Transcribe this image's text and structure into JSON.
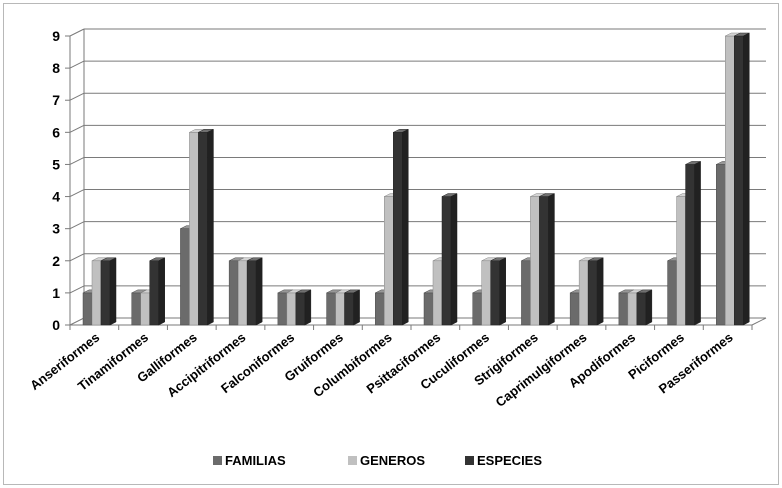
{
  "chart_data": {
    "type": "bar",
    "style": "3d-clustered-column",
    "categories": [
      "Anseriformes",
      "Tinamiformes",
      "Galliformes",
      "Accipitriformes",
      "Falconiformes",
      "Gruiformes",
      "Columbiformes",
      "Psittaciformes",
      "Cuculiformes",
      "Strigiformes",
      "Caprimulgiformes",
      "Apodiformes",
      "Piciformes",
      "Passeriformes"
    ],
    "series": [
      {
        "name": "FAMILIAS",
        "color": "#6b6b6b",
        "values": [
          1,
          1,
          3,
          2,
          1,
          1,
          1,
          1,
          1,
          2,
          1,
          1,
          2,
          5
        ]
      },
      {
        "name": "GENEROS",
        "color": "#c0c0c0",
        "values": [
          2,
          1,
          6,
          2,
          1,
          1,
          4,
          2,
          2,
          4,
          2,
          1,
          4,
          9
        ]
      },
      {
        "name": "ESPECIES",
        "color": "#333333",
        "values": [
          2,
          2,
          6,
          2,
          1,
          1,
          6,
          4,
          2,
          4,
          2,
          1,
          5,
          9
        ]
      }
    ],
    "ylim": [
      0,
      9
    ],
    "yticks": [
      "0",
      "1",
      "2",
      "3",
      "4",
      "5",
      "6",
      "7",
      "8",
      "9"
    ],
    "grid": true,
    "legend": "bottom",
    "title": "",
    "xlabel": "",
    "ylabel": ""
  }
}
